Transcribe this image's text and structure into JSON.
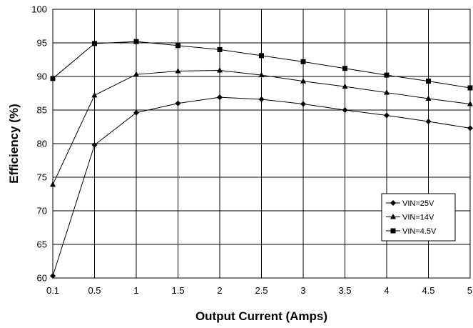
{
  "chart_data": {
    "type": "line",
    "title": "",
    "xlabel": "Output Current (Amps)",
    "ylabel": "Efficiency (%)",
    "x": [
      0.1,
      0.5,
      1,
      1.5,
      2,
      2.5,
      3,
      3.5,
      4,
      4.5,
      5
    ],
    "x_tick_labels": [
      "0.1",
      "0.5",
      "1",
      "1.5",
      "2",
      "2.5",
      "3",
      "3.5",
      "4",
      "4.5",
      "5"
    ],
    "y_ticks": [
      60,
      65,
      70,
      75,
      80,
      85,
      90,
      95,
      100
    ],
    "y_tick_labels": [
      "60",
      "65",
      "70",
      "75",
      "80",
      "85",
      "90",
      "95",
      "100"
    ],
    "ylim": [
      60,
      100
    ],
    "grid": true,
    "legend_position": "bottom-right",
    "series": [
      {
        "name": "VIN=25V",
        "marker": "diamond",
        "values": [
          60.3,
          79.8,
          84.6,
          86.0,
          86.9,
          86.6,
          85.9,
          85.0,
          84.2,
          83.3,
          82.3
        ]
      },
      {
        "name": "VIN=14V",
        "marker": "triangle",
        "values": [
          73.9,
          87.2,
          90.3,
          90.8,
          90.9,
          90.2,
          89.3,
          88.5,
          87.6,
          86.7,
          85.9
        ]
      },
      {
        "name": "VIN=4.5V",
        "marker": "square",
        "values": [
          89.7,
          94.9,
          95.2,
          94.6,
          94.0,
          93.1,
          92.2,
          91.2,
          90.2,
          89.3,
          88.3
        ]
      }
    ]
  }
}
